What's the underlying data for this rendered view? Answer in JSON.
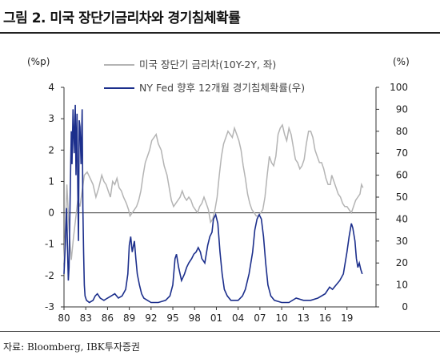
{
  "header": {
    "title": "그림 2. 미국 장단기금리차와 경기침체확률"
  },
  "footer": {
    "source": "자료: Bloomberg, IBK투자증권"
  },
  "chart_data": {
    "type": "line",
    "left_unit": "(%p)",
    "right_unit": "(%)",
    "left_axis": {
      "min": -3,
      "max": 4,
      "ticks": [
        "4",
        "3",
        "2",
        "1",
        "0",
        "-1",
        "-2",
        "-3"
      ]
    },
    "right_axis": {
      "min": 0,
      "max": 100,
      "ticks": [
        "100",
        "90",
        "80",
        "70",
        "60",
        "50",
        "40",
        "30",
        "20",
        "10",
        "0"
      ]
    },
    "x_axis": {
      "min": 1980,
      "max": 2023,
      "ticks": [
        "80",
        "83",
        "86",
        "89",
        "92",
        "95",
        "98",
        "01",
        "04",
        "07",
        "10",
        "13",
        "16",
        "19"
      ]
    },
    "colors": {
      "spread": "#b4b4b4",
      "recession": "#1c2f8c",
      "axis": "#333333"
    },
    "series": [
      {
        "name": "미국 장단기 금리차(10Y-2Y, 좌)",
        "axis": "left",
        "points": [
          [
            1980.0,
            -1.6
          ],
          [
            1980.2,
            -0.4
          ],
          [
            1980.4,
            0.9
          ],
          [
            1980.7,
            -0.5
          ],
          [
            1981.0,
            -1.5
          ],
          [
            1981.3,
            -0.8
          ],
          [
            1981.6,
            -0.2
          ],
          [
            1981.9,
            0.4
          ],
          [
            1982.2,
            0.2
          ],
          [
            1982.5,
            0.7
          ],
          [
            1982.8,
            1.2
          ],
          [
            1983.2,
            1.3
          ],
          [
            1983.6,
            1.1
          ],
          [
            1984.0,
            0.9
          ],
          [
            1984.4,
            0.5
          ],
          [
            1984.8,
            0.8
          ],
          [
            1985.2,
            1.2
          ],
          [
            1985.5,
            1.0
          ],
          [
            1985.8,
            0.9
          ],
          [
            1986.1,
            0.7
          ],
          [
            1986.4,
            0.5
          ],
          [
            1986.7,
            1.0
          ],
          [
            1987.0,
            0.9
          ],
          [
            1987.3,
            1.1
          ],
          [
            1987.6,
            0.8
          ],
          [
            1987.9,
            0.7
          ],
          [
            1988.2,
            0.5
          ],
          [
            1988.6,
            0.3
          ],
          [
            1988.9,
            0.1
          ],
          [
            1989.1,
            -0.1
          ],
          [
            1989.4,
            0.0
          ],
          [
            1989.7,
            0.1
          ],
          [
            1990.0,
            0.2
          ],
          [
            1990.3,
            0.4
          ],
          [
            1990.6,
            0.7
          ],
          [
            1990.9,
            1.2
          ],
          [
            1991.2,
            1.6
          ],
          [
            1991.5,
            1.8
          ],
          [
            1991.8,
            2.0
          ],
          [
            1992.1,
            2.3
          ],
          [
            1992.4,
            2.4
          ],
          [
            1992.7,
            2.5
          ],
          [
            1993.0,
            2.2
          ],
          [
            1993.4,
            2.0
          ],
          [
            1993.8,
            1.5
          ],
          [
            1994.2,
            1.2
          ],
          [
            1994.5,
            0.8
          ],
          [
            1994.8,
            0.4
          ],
          [
            1995.1,
            0.2
          ],
          [
            1995.4,
            0.3
          ],
          [
            1995.7,
            0.4
          ],
          [
            1996.0,
            0.5
          ],
          [
            1996.3,
            0.7
          ],
          [
            1996.6,
            0.5
          ],
          [
            1996.9,
            0.4
          ],
          [
            1997.2,
            0.5
          ],
          [
            1997.5,
            0.4
          ],
          [
            1997.8,
            0.2
          ],
          [
            1998.1,
            0.1
          ],
          [
            1998.4,
            0.0
          ],
          [
            1998.7,
            0.2
          ],
          [
            1999.0,
            0.3
          ],
          [
            1999.3,
            0.5
          ],
          [
            1999.6,
            0.3
          ],
          [
            1999.9,
            0.1
          ],
          [
            2000.2,
            -0.3
          ],
          [
            2000.5,
            -0.2
          ],
          [
            2000.8,
            0.1
          ],
          [
            2001.1,
            0.5
          ],
          [
            2001.4,
            1.2
          ],
          [
            2001.7,
            1.8
          ],
          [
            2002.0,
            2.2
          ],
          [
            2002.3,
            2.4
          ],
          [
            2002.6,
            2.6
          ],
          [
            2002.9,
            2.5
          ],
          [
            2003.2,
            2.4
          ],
          [
            2003.5,
            2.7
          ],
          [
            2003.8,
            2.5
          ],
          [
            2004.1,
            2.3
          ],
          [
            2004.4,
            2.0
          ],
          [
            2004.7,
            1.5
          ],
          [
            2005.0,
            1.1
          ],
          [
            2005.3,
            0.6
          ],
          [
            2005.6,
            0.3
          ],
          [
            2005.9,
            0.1
          ],
          [
            2006.2,
            0.0
          ],
          [
            2006.5,
            -0.1
          ],
          [
            2006.8,
            -0.1
          ],
          [
            2007.1,
            0.0
          ],
          [
            2007.4,
            0.1
          ],
          [
            2007.7,
            0.5
          ],
          [
            2008.0,
            1.2
          ],
          [
            2008.3,
            1.8
          ],
          [
            2008.6,
            1.6
          ],
          [
            2008.9,
            1.5
          ],
          [
            2009.2,
            1.8
          ],
          [
            2009.5,
            2.5
          ],
          [
            2009.8,
            2.7
          ],
          [
            2010.1,
            2.8
          ],
          [
            2010.4,
            2.5
          ],
          [
            2010.7,
            2.3
          ],
          [
            2011.0,
            2.7
          ],
          [
            2011.3,
            2.5
          ],
          [
            2011.6,
            2.1
          ],
          [
            2011.9,
            1.7
          ],
          [
            2012.2,
            1.6
          ],
          [
            2012.5,
            1.4
          ],
          [
            2012.8,
            1.5
          ],
          [
            2013.1,
            1.7
          ],
          [
            2013.4,
            2.2
          ],
          [
            2013.7,
            2.6
          ],
          [
            2014.0,
            2.6
          ],
          [
            2014.3,
            2.4
          ],
          [
            2014.6,
            2.0
          ],
          [
            2014.9,
            1.8
          ],
          [
            2015.2,
            1.6
          ],
          [
            2015.5,
            1.6
          ],
          [
            2015.8,
            1.4
          ],
          [
            2016.1,
            1.1
          ],
          [
            2016.4,
            0.9
          ],
          [
            2016.7,
            0.9
          ],
          [
            2016.9,
            1.2
          ],
          [
            2017.2,
            1.0
          ],
          [
            2017.5,
            0.8
          ],
          [
            2017.8,
            0.6
          ],
          [
            2018.1,
            0.5
          ],
          [
            2018.4,
            0.3
          ],
          [
            2018.7,
            0.2
          ],
          [
            2019.0,
            0.2
          ],
          [
            2019.3,
            0.1
          ],
          [
            2019.6,
            0.0
          ],
          [
            2019.9,
            0.2
          ],
          [
            2020.2,
            0.4
          ],
          [
            2020.5,
            0.5
          ],
          [
            2020.8,
            0.6
          ],
          [
            2021.0,
            0.9
          ],
          [
            2021.2,
            0.8
          ]
        ]
      },
      {
        "name": "NY Fed 향후 12개월 경기침체확률(우)",
        "axis": "right",
        "points": [
          [
            1980.0,
            15
          ],
          [
            1980.2,
            30
          ],
          [
            1980.35,
            45
          ],
          [
            1980.5,
            25
          ],
          [
            1980.6,
            12
          ],
          [
            1980.7,
            18
          ],
          [
            1980.85,
            50
          ],
          [
            1981.0,
            80
          ],
          [
            1981.1,
            65
          ],
          [
            1981.25,
            90
          ],
          [
            1981.4,
            70
          ],
          [
            1981.55,
            92
          ],
          [
            1981.65,
            60
          ],
          [
            1981.8,
            88
          ],
          [
            1981.9,
            55
          ],
          [
            1982.0,
            30
          ],
          [
            1982.1,
            85
          ],
          [
            1982.2,
            82
          ],
          [
            1982.35,
            65
          ],
          [
            1982.5,
            90
          ],
          [
            1982.6,
            45
          ],
          [
            1982.7,
            25
          ],
          [
            1982.8,
            10
          ],
          [
            1982.9,
            5
          ],
          [
            1983.1,
            3
          ],
          [
            1983.5,
            2
          ],
          [
            1984.0,
            3
          ],
          [
            1984.3,
            5
          ],
          [
            1984.6,
            6
          ],
          [
            1985.0,
            4
          ],
          [
            1985.5,
            3
          ],
          [
            1986.0,
            4
          ],
          [
            1986.5,
            5
          ],
          [
            1987.0,
            6
          ],
          [
            1987.5,
            4
          ],
          [
            1988.0,
            5
          ],
          [
            1988.5,
            8
          ],
          [
            1988.8,
            15
          ],
          [
            1989.0,
            28
          ],
          [
            1989.2,
            32
          ],
          [
            1989.4,
            25
          ],
          [
            1989.7,
            30
          ],
          [
            1989.9,
            22
          ],
          [
            1990.1,
            15
          ],
          [
            1990.4,
            10
          ],
          [
            1990.7,
            6
          ],
          [
            1991.0,
            4
          ],
          [
            1991.5,
            3
          ],
          [
            1992.0,
            2
          ],
          [
            1993.0,
            2
          ],
          [
            1994.0,
            3
          ],
          [
            1994.6,
            5
          ],
          [
            1995.0,
            10
          ],
          [
            1995.3,
            22
          ],
          [
            1995.5,
            24
          ],
          [
            1995.8,
            18
          ],
          [
            1996.2,
            12
          ],
          [
            1996.6,
            15
          ],
          [
            1996.9,
            18
          ],
          [
            1997.2,
            20
          ],
          [
            1997.6,
            22
          ],
          [
            1997.9,
            24
          ],
          [
            1998.2,
            25
          ],
          [
            1998.5,
            27
          ],
          [
            1998.8,
            25
          ],
          [
            1999.0,
            22
          ],
          [
            1999.4,
            20
          ],
          [
            1999.8,
            28
          ],
          [
            2000.1,
            32
          ],
          [
            2000.4,
            34
          ],
          [
            2000.6,
            40
          ],
          [
            2000.9,
            42
          ],
          [
            2001.2,
            38
          ],
          [
            2001.5,
            25
          ],
          [
            2001.8,
            15
          ],
          [
            2002.1,
            8
          ],
          [
            2002.5,
            5
          ],
          [
            2003.0,
            3
          ],
          [
            2004.0,
            3
          ],
          [
            2004.6,
            5
          ],
          [
            2005.0,
            8
          ],
          [
            2005.5,
            15
          ],
          [
            2006.0,
            25
          ],
          [
            2006.3,
            35
          ],
          [
            2006.6,
            40
          ],
          [
            2006.9,
            42
          ],
          [
            2007.2,
            40
          ],
          [
            2007.5,
            32
          ],
          [
            2007.8,
            20
          ],
          [
            2008.1,
            10
          ],
          [
            2008.5,
            5
          ],
          [
            2009.0,
            3
          ],
          [
            2010.0,
            2
          ],
          [
            2011.0,
            2
          ],
          [
            2012.0,
            4
          ],
          [
            2013.0,
            3
          ],
          [
            2014.0,
            3
          ],
          [
            2015.0,
            4
          ],
          [
            2016.0,
            6
          ],
          [
            2016.6,
            9
          ],
          [
            2017.0,
            8
          ],
          [
            2017.5,
            10
          ],
          [
            2018.0,
            12
          ],
          [
            2018.5,
            15
          ],
          [
            2019.0,
            25
          ],
          [
            2019.3,
            32
          ],
          [
            2019.6,
            38
          ],
          [
            2019.8,
            36
          ],
          [
            2020.1,
            30
          ],
          [
            2020.3,
            22
          ],
          [
            2020.5,
            18
          ],
          [
            2020.7,
            20
          ],
          [
            2020.9,
            17
          ],
          [
            2021.1,
            15
          ]
        ]
      }
    ]
  }
}
